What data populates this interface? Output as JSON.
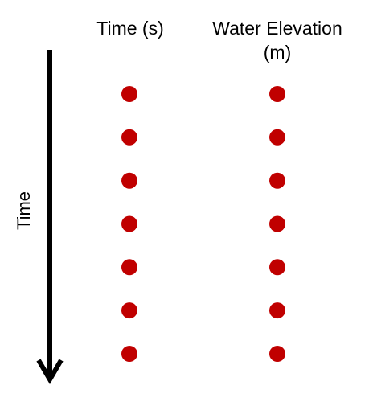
{
  "headers": {
    "time_column": "Time (s)",
    "elevation_column": "Water Elevation (m)"
  },
  "axis": {
    "label": "Time",
    "direction": "downward"
  },
  "rows": 7,
  "colors": {
    "dot": "#c00000",
    "arrow": "#000000",
    "background": "#ffffff"
  }
}
